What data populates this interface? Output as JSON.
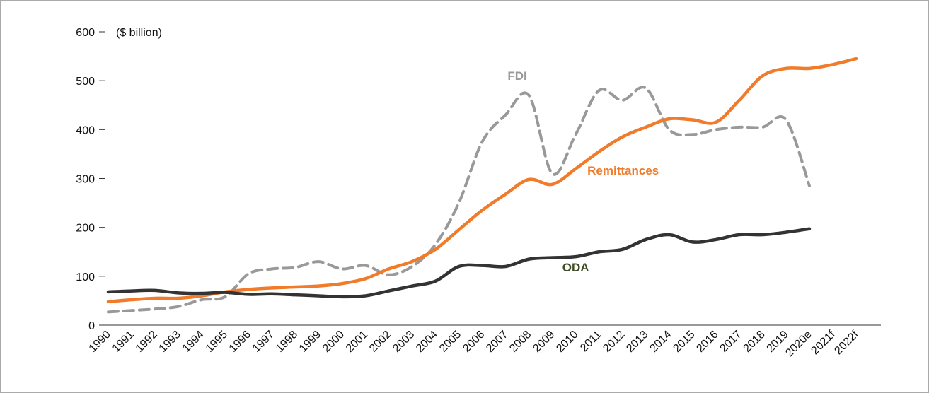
{
  "chart_data": {
    "type": "line",
    "unit_label": "($ billion)",
    "categories": [
      "1990",
      "1991",
      "1992",
      "1993",
      "1994",
      "1995",
      "1996",
      "1997",
      "1998",
      "1999",
      "2000",
      "2001",
      "2002",
      "2003",
      "2004",
      "2005",
      "2006",
      "2007",
      "2008",
      "2009",
      "2010",
      "2011",
      "2012",
      "2013",
      "2014",
      "2015",
      "2016",
      "2017",
      "2018",
      "2019",
      "2020e",
      "2021f",
      "2022f"
    ],
    "series": [
      {
        "name": "FDI",
        "color": "#999999",
        "dashed": true,
        "values": [
          27,
          30,
          33,
          38,
          52,
          58,
          105,
          115,
          118,
          130,
          115,
          122,
          103,
          120,
          165,
          250,
          375,
          430,
          470,
          310,
          390,
          480,
          460,
          485,
          400,
          390,
          400,
          405,
          405,
          420,
          285,
          null,
          null
        ]
      },
      {
        "name": "Remittances",
        "color": "#f07b2a",
        "dashed": false,
        "values": [
          48,
          52,
          55,
          55,
          60,
          68,
          73,
          76,
          78,
          80,
          85,
          95,
          115,
          130,
          155,
          195,
          235,
          268,
          298,
          288,
          320,
          355,
          385,
          405,
          422,
          420,
          415,
          460,
          510,
          525,
          525,
          533,
          545
        ]
      },
      {
        "name": "ODA",
        "color": "#333333",
        "label_color": "#3f4d26",
        "dashed": false,
        "values": [
          68,
          70,
          71,
          66,
          65,
          67,
          63,
          64,
          62,
          60,
          58,
          60,
          70,
          80,
          90,
          120,
          122,
          120,
          135,
          138,
          140,
          150,
          155,
          175,
          185,
          170,
          175,
          185,
          185,
          190,
          197,
          null,
          null
        ]
      }
    ],
    "ylim": [
      0,
      600
    ],
    "yticks": [
      0,
      100,
      200,
      300,
      400,
      500,
      600
    ],
    "grid": false
  }
}
